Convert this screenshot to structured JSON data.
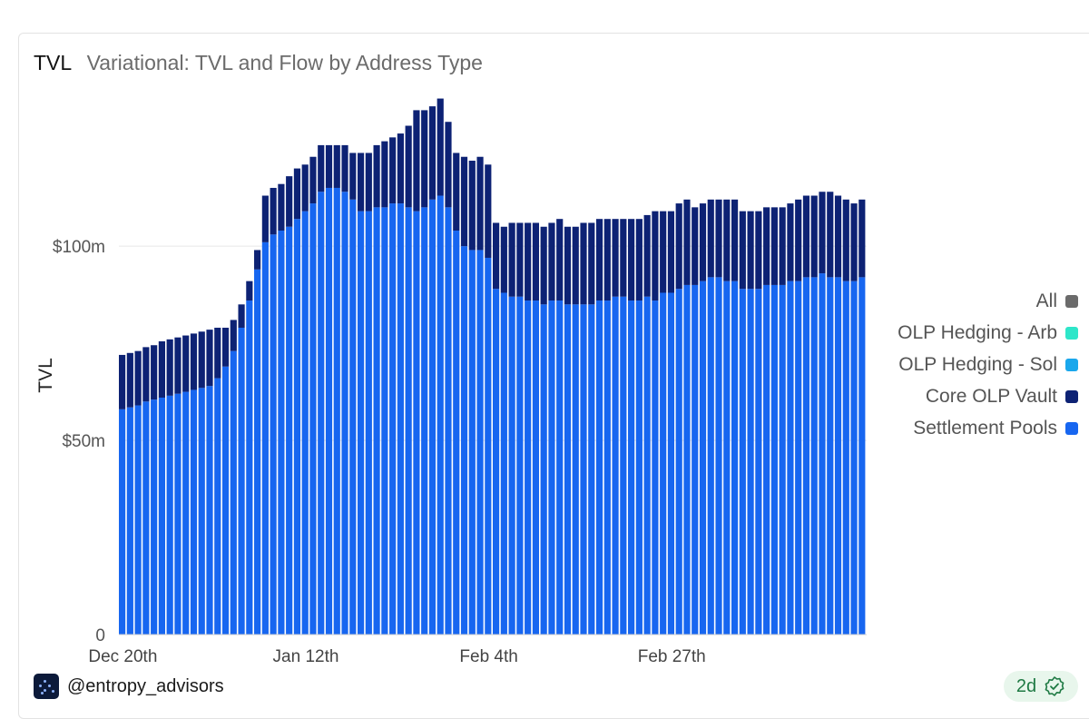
{
  "header": {
    "title": "TVL",
    "subtitle": "Variational: TVL and Flow by Address Type"
  },
  "legend": [
    {
      "label": "All",
      "color": "#6b6b6b"
    },
    {
      "label": "OLP Hedging - Arb",
      "color": "#2ee6c9"
    },
    {
      "label": "OLP Hedging - Sol",
      "color": "#1aa7ec"
    },
    {
      "label": "Core OLP Vault",
      "color": "#0d2274"
    },
    {
      "label": "Settlement Pools",
      "color": "#1766f0"
    }
  ],
  "footer": {
    "handle": "@entropy_advisors",
    "badge": "2d",
    "badge_icon": "verified-check-icon"
  },
  "chart_data": {
    "type": "bar",
    "stacked": true,
    "ylabel": "TVL",
    "xlabel": "",
    "ylim": [
      0,
      140
    ],
    "yticks": [
      {
        "value": 0,
        "label": "0"
      },
      {
        "value": 50,
        "label": "$50m"
      },
      {
        "value": 100,
        "label": "$100m"
      }
    ],
    "xticks": [
      {
        "index": 0,
        "label": "Dec 20th"
      },
      {
        "index": 23,
        "label": "Jan 12th"
      },
      {
        "index": 46,
        "label": "Feb 4th"
      },
      {
        "index": 69,
        "label": "Feb 27th"
      }
    ],
    "grid": "horizontal-at-ticks",
    "legend_position": "right",
    "categories_note": "daily bars from Dec 20th to Mar 21st",
    "series": [
      {
        "name": "Settlement Pools",
        "color": "#1766f0",
        "values": [
          58,
          58.5,
          59,
          60,
          60.5,
          61,
          61.5,
          62,
          62.5,
          63,
          63.5,
          64,
          66,
          69,
          73,
          79,
          86,
          94,
          101,
          103,
          104,
          105,
          107,
          109,
          111,
          114,
          115,
          115,
          114,
          112,
          109,
          109,
          110,
          110,
          111,
          111,
          110,
          109,
          110,
          112,
          113,
          110,
          104,
          100,
          99,
          99,
          97,
          89,
          88,
          87,
          87,
          86,
          86,
          85,
          86,
          86,
          85,
          85,
          85,
          85,
          86,
          86,
          87,
          87,
          86,
          86,
          87,
          86,
          88,
          88,
          89,
          90,
          90,
          91,
          92,
          92,
          91,
          91,
          89,
          89,
          89,
          90,
          90,
          90,
          91,
          91,
          92,
          92,
          93,
          92,
          92,
          91,
          91,
          92
        ]
      },
      {
        "name": "Core OLP Vault",
        "color": "#0d2274",
        "values": [
          14,
          14,
          14,
          14,
          14,
          14.5,
          14.5,
          14.5,
          14.5,
          14.5,
          14.5,
          14.5,
          13,
          10,
          8,
          6,
          5,
          5,
          12,
          12,
          12,
          13,
          13,
          12,
          12,
          12,
          11,
          11,
          12,
          12,
          15,
          15,
          16,
          17,
          17,
          18,
          21,
          26,
          25,
          24,
          25,
          22,
          20,
          23,
          23,
          24,
          24,
          17,
          17,
          19,
          19,
          20,
          20,
          20,
          20,
          21,
          20,
          20,
          21,
          21,
          21,
          21,
          20,
          20,
          21,
          21,
          21,
          23,
          21,
          21,
          22,
          22,
          20,
          20,
          20,
          20,
          21,
          21,
          20,
          20,
          20,
          20,
          20,
          20,
          20,
          21,
          21,
          21,
          21,
          22,
          21,
          21,
          20,
          20
        ]
      },
      {
        "name": "OLP Hedging - Arb",
        "color": "#2ee6c9",
        "values": []
      },
      {
        "name": "OLP Hedging - Sol",
        "color": "#1aa7ec",
        "values": []
      }
    ]
  }
}
